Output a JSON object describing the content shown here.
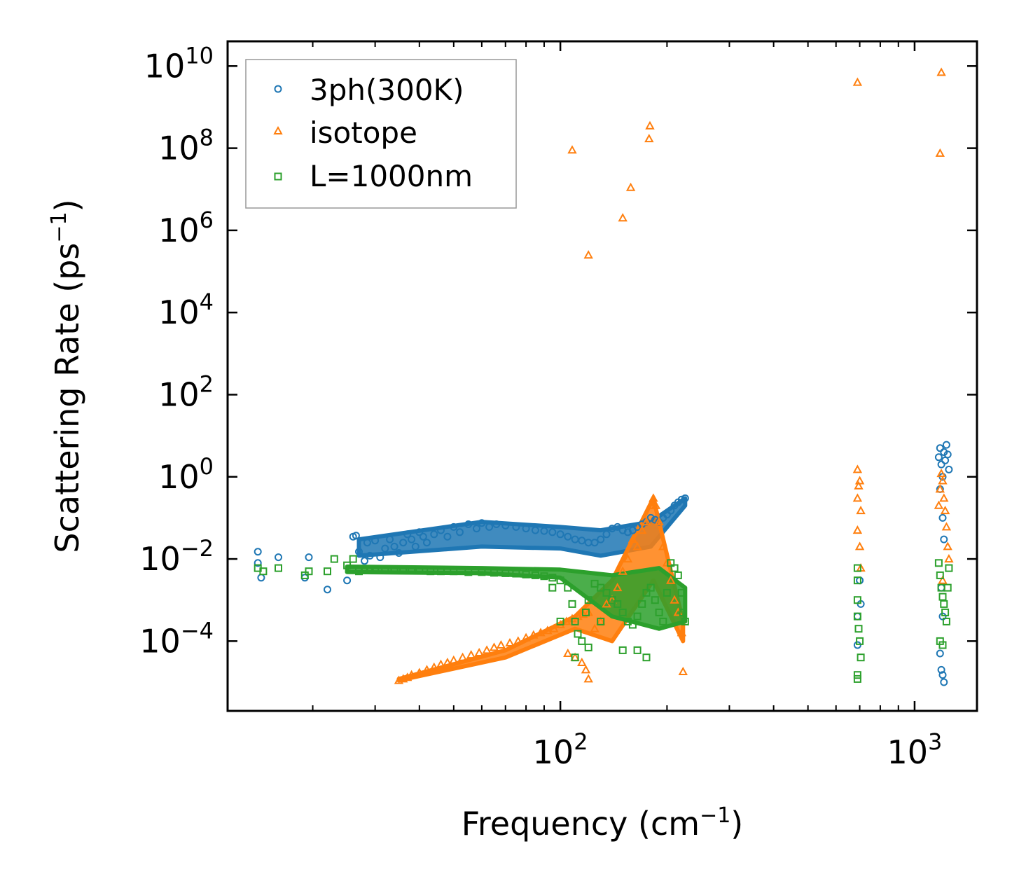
{
  "chart_data": {
    "type": "scatter",
    "xlabel": "Frequency (cm",
    "xlabel_sup": "−1",
    "xlabel_end": ")",
    "ylabel": "Scattering Rate (ps",
    "ylabel_sup": "−1",
    "ylabel_end": ")",
    "xscale": "log",
    "yscale": "log",
    "xlim": [
      11.5,
      1500
    ],
    "ylim": [
      2e-06,
      40000000000.0
    ],
    "x_ticks": [
      {
        "value": 100,
        "base": "10",
        "exp": "2"
      },
      {
        "value": 1000,
        "base": "10",
        "exp": "3"
      }
    ],
    "y_ticks": [
      {
        "value": 0.0001,
        "base": "10",
        "exp": "−4"
      },
      {
        "value": 0.01,
        "base": "10",
        "exp": "−2"
      },
      {
        "value": 1,
        "base": "10",
        "exp": "0"
      },
      {
        "value": 100,
        "base": "10",
        "exp": "2"
      },
      {
        "value": 10000.0,
        "base": "10",
        "exp": "4"
      },
      {
        "value": 1000000.0,
        "base": "10",
        "exp": "6"
      },
      {
        "value": 100000000.0,
        "base": "10",
        "exp": "8"
      },
      {
        "value": 10000000000.0,
        "base": "10",
        "exp": "10"
      }
    ],
    "legend_position": "top-left",
    "series": [
      {
        "name": "3ph(300K)",
        "marker": "circle",
        "color": "#1f77b4",
        "points": [
          [
            14,
            0.015
          ],
          [
            14,
            0.008
          ],
          [
            14.3,
            0.0035
          ],
          [
            16,
            0.011
          ],
          [
            19,
            0.0035
          ],
          [
            19.5,
            0.011
          ],
          [
            22,
            0.0018
          ],
          [
            25,
            0.003
          ],
          [
            26,
            0.035
          ],
          [
            26.5,
            0.037
          ],
          [
            27,
            0.015
          ],
          [
            28,
            0.009
          ],
          [
            28.5,
            0.025
          ],
          [
            29,
            0.012
          ],
          [
            30,
            0.028
          ],
          [
            31,
            0.011
          ],
          [
            32,
            0.018
          ],
          [
            33,
            0.03
          ],
          [
            34,
            0.02
          ],
          [
            35,
            0.014
          ],
          [
            36,
            0.025
          ],
          [
            37,
            0.04
          ],
          [
            38,
            0.03
          ],
          [
            39,
            0.02
          ],
          [
            40,
            0.045
          ],
          [
            41,
            0.035
          ],
          [
            42,
            0.025
          ],
          [
            44,
            0.04
          ],
          [
            46,
            0.05
          ],
          [
            48,
            0.035
          ],
          [
            50,
            0.06
          ],
          [
            52,
            0.045
          ],
          [
            55,
            0.07
          ],
          [
            58,
            0.055
          ],
          [
            60,
            0.075
          ],
          [
            63,
            0.06
          ],
          [
            66,
            0.07
          ],
          [
            70,
            0.065
          ],
          [
            75,
            0.06
          ],
          [
            80,
            0.055
          ],
          [
            85,
            0.05
          ],
          [
            90,
            0.048
          ],
          [
            95,
            0.045
          ],
          [
            100,
            0.04
          ],
          [
            105,
            0.035
          ],
          [
            110,
            0.03
          ],
          [
            115,
            0.028
          ],
          [
            120,
            0.025
          ],
          [
            125,
            0.025
          ],
          [
            130,
            0.03
          ],
          [
            135,
            0.04
          ],
          [
            140,
            0.055
          ],
          [
            145,
            0.06
          ],
          [
            150,
            0.05
          ],
          [
            155,
            0.045
          ],
          [
            160,
            0.05
          ],
          [
            165,
            0.06
          ],
          [
            170,
            0.07
          ],
          [
            175,
            0.08
          ],
          [
            180,
            0.1
          ],
          [
            185,
            0.09
          ],
          [
            190,
            0.08
          ],
          [
            195,
            0.1
          ],
          [
            200,
            0.12
          ],
          [
            205,
            0.15
          ],
          [
            210,
            0.2
          ],
          [
            215,
            0.24
          ],
          [
            220,
            0.28
          ],
          [
            225,
            0.3
          ],
          [
            690,
            0.0004
          ],
          [
            690,
            8e-05
          ],
          [
            700,
            0.003
          ],
          [
            705,
            0.0008
          ],
          [
            1170,
            3
          ],
          [
            1180,
            5
          ],
          [
            1190,
            2
          ],
          [
            1200,
            1
          ],
          [
            1210,
            4
          ],
          [
            1220,
            2.5
          ],
          [
            1230,
            6
          ],
          [
            1240,
            3.5
          ],
          [
            1250,
            1.5
          ],
          [
            1180,
            0.5
          ],
          [
            1200,
            0.1
          ],
          [
            1210,
            0.03
          ],
          [
            1190,
            0.002
          ],
          [
            1200,
            0.0004
          ],
          [
            1180,
            5e-05
          ],
          [
            1200,
            1.5e-05
          ],
          [
            1210,
            1e-05
          ],
          [
            1190,
            2e-05
          ]
        ]
      },
      {
        "name": "isotope",
        "marker": "triangle",
        "color": "#ff7f0e",
        "points": [
          [
            35,
            1.1e-05
          ],
          [
            36,
            1.2e-05
          ],
          [
            37,
            1.3e-05
          ],
          [
            38,
            1.5e-05
          ],
          [
            40,
            1.7e-05
          ],
          [
            42,
            2e-05
          ],
          [
            44,
            2.3e-05
          ],
          [
            46,
            2.7e-05
          ],
          [
            48,
            3e-05
          ],
          [
            50,
            3.4e-05
          ],
          [
            53,
            4e-05
          ],
          [
            56,
            4.6e-05
          ],
          [
            59,
            5.2e-05
          ],
          [
            62,
            6e-05
          ],
          [
            65,
            7e-05
          ],
          [
            68,
            8e-05
          ],
          [
            72,
            9e-05
          ],
          [
            76,
            0.0001
          ],
          [
            80,
            0.00012
          ],
          [
            84,
            0.00014
          ],
          [
            88,
            0.00016
          ],
          [
            92,
            0.00018
          ],
          [
            96,
            0.0002
          ],
          [
            100,
            0.00025
          ],
          [
            104,
            0.0003
          ],
          [
            108,
            0.00035
          ],
          [
            112,
            0.0004
          ],
          [
            116,
            0.00045
          ],
          [
            120,
            0.0005
          ],
          [
            105,
            5e-05
          ],
          [
            110,
            4e-05
          ],
          [
            115,
            3e-05
          ],
          [
            118,
            2e-05
          ],
          [
            120,
            1.2e-05
          ],
          [
            125,
            0.0002
          ],
          [
            130,
            0.0003
          ],
          [
            135,
            0.0008
          ],
          [
            140,
            0.001
          ],
          [
            145,
            0.002
          ],
          [
            150,
            0.005
          ],
          [
            155,
            0.01
          ],
          [
            160,
            0.03
          ],
          [
            165,
            0.02
          ],
          [
            170,
            0.05
          ],
          [
            175,
            0.08
          ],
          [
            180,
            0.2
          ],
          [
            183,
            0.3
          ],
          [
            186,
            0.2
          ],
          [
            190,
            0.08
          ],
          [
            195,
            0.02
          ],
          [
            200,
            0.008
          ],
          [
            205,
            0.003
          ],
          [
            210,
            0.001
          ],
          [
            215,
            0.0005
          ],
          [
            220,
            0.00016
          ],
          [
            222,
            1.8e-05
          ],
          [
            120,
            250000
          ],
          [
            108,
            90000000
          ],
          [
            150,
            2000000
          ],
          [
            158,
            11000000
          ],
          [
            178,
            170000000
          ],
          [
            179,
            350000000
          ],
          [
            690,
            4000000000
          ],
          [
            1190,
            7000000000
          ],
          [
            1180,
            75000000
          ],
          [
            690,
            0.05
          ],
          [
            690,
            0.3
          ],
          [
            690,
            1.5
          ],
          [
            700,
            0.8
          ],
          [
            705,
            0.15
          ],
          [
            695,
            0.6
          ],
          [
            700,
            0.02
          ],
          [
            705,
            0.006
          ],
          [
            1170,
            0.2
          ],
          [
            1180,
            0.5
          ],
          [
            1190,
            1.2
          ],
          [
            1200,
            0.8
          ],
          [
            1210,
            0.3
          ],
          [
            1220,
            0.15
          ],
          [
            1230,
            0.06
          ],
          [
            1240,
            0.02
          ],
          [
            1250,
            0.01
          ],
          [
            1200,
            0.003
          ]
        ]
      },
      {
        "name": "L=1000nm",
        "marker": "square",
        "color": "#2ca02c",
        "points": [
          [
            14,
            0.006
          ],
          [
            14.5,
            0.005
          ],
          [
            16,
            0.006
          ],
          [
            19,
            0.004
          ],
          [
            19.5,
            0.005
          ],
          [
            22,
            0.005
          ],
          [
            23,
            0.01
          ],
          [
            25,
            0.007
          ],
          [
            26,
            0.01
          ],
          [
            27,
            0.005
          ],
          [
            28,
            0.0055
          ],
          [
            29,
            0.0055
          ],
          [
            30,
            0.0055
          ],
          [
            32,
            0.0055
          ],
          [
            34,
            0.0055
          ],
          [
            36,
            0.0055
          ],
          [
            38,
            0.0055
          ],
          [
            40,
            0.0055
          ],
          [
            43,
            0.005
          ],
          [
            46,
            0.005
          ],
          [
            50,
            0.005
          ],
          [
            55,
            0.0048
          ],
          [
            60,
            0.0048
          ],
          [
            65,
            0.0046
          ],
          [
            70,
            0.0045
          ],
          [
            75,
            0.0044
          ],
          [
            80,
            0.0042
          ],
          [
            85,
            0.004
          ],
          [
            90,
            0.0038
          ],
          [
            95,
            0.0035
          ],
          [
            100,
            0.003
          ],
          [
            105,
            0.002
          ],
          [
            108,
            0.0008
          ],
          [
            110,
            0.0003
          ],
          [
            112,
            0.00015
          ],
          [
            115,
            0.0001
          ],
          [
            118,
            0.0005
          ],
          [
            120,
            0.001
          ],
          [
            125,
            0.0025
          ],
          [
            130,
            0.002
          ],
          [
            135,
            0.0015
          ],
          [
            140,
            0.001
          ],
          [
            145,
            0.0008
          ],
          [
            150,
            0.0005
          ],
          [
            155,
            0.0003
          ],
          [
            160,
            0.00025
          ],
          [
            165,
            0.0004
          ],
          [
            170,
            0.0008
          ],
          [
            175,
            0.0015
          ],
          [
            180,
            0.002
          ],
          [
            185,
            0.001
          ],
          [
            190,
            0.0005
          ],
          [
            195,
            0.0003
          ],
          [
            200,
            0.0015
          ],
          [
            205,
            0.008
          ],
          [
            210,
            0.006
          ],
          [
            215,
            0.004
          ],
          [
            220,
            0.0015
          ],
          [
            222,
            0.0005
          ],
          [
            225,
            0.0003
          ],
          [
            110,
            4e-05
          ],
          [
            120,
            7e-05
          ],
          [
            150,
            6e-05
          ],
          [
            165,
            6e-05
          ],
          [
            175,
            4e-05
          ],
          [
            100,
            0.0003
          ],
          [
            95,
            0.002
          ],
          [
            130,
            0.0003
          ],
          [
            690,
            0.006
          ],
          [
            690,
            0.003
          ],
          [
            690,
            0.001
          ],
          [
            690,
            0.0004
          ],
          [
            695,
            0.0002
          ],
          [
            700,
            0.0001
          ],
          [
            690,
            1.5e-05
          ],
          [
            690,
            1.2e-05
          ],
          [
            705,
            4e-05
          ],
          [
            1170,
            0.008
          ],
          [
            1180,
            0.004
          ],
          [
            1190,
            0.002
          ],
          [
            1200,
            0.0012
          ],
          [
            1210,
            0.0008
          ],
          [
            1220,
            0.0005
          ],
          [
            1230,
            0.0003
          ],
          [
            1240,
            0.002
          ],
          [
            1250,
            0.006
          ],
          [
            1180,
            0.0001
          ],
          [
            1200,
            8e-05
          ]
        ]
      }
    ],
    "bands": [
      {
        "series": 0,
        "x0": 27,
        "x1": 225,
        "y_top": [
          0.03,
          0.08,
          0.06,
          0.05,
          0.08,
          0.3
        ],
        "y_bottom": [
          0.012,
          0.02,
          0.018,
          0.012,
          0.02,
          0.2
        ],
        "xs": [
          27,
          60,
          100,
          130,
          180,
          225
        ]
      },
      {
        "series": 1,
        "x0": 35,
        "x1": 222,
        "y_top": [
          1.2e-05,
          6e-05,
          0.0004,
          0.003,
          0.3,
          0.0003
        ],
        "y_bottom": [
          1.1e-05,
          4e-05,
          0.0002,
          0.0001,
          0.003,
          0.0001
        ],
        "xs": [
          35,
          70,
          110,
          140,
          183,
          222
        ]
      },
      {
        "series": 2,
        "x0": 25,
        "x1": 225,
        "y_top": [
          0.0065,
          0.006,
          0.0055,
          0.004,
          0.006,
          0.002
        ],
        "y_bottom": [
          0.0048,
          0.0045,
          0.0035,
          0.0004,
          0.0002,
          0.0003
        ],
        "xs": [
          25,
          60,
          100,
          140,
          190,
          225
        ]
      }
    ]
  }
}
